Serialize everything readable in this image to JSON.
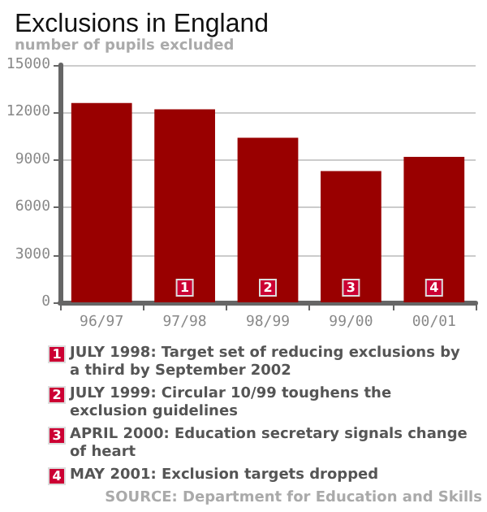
{
  "chart_data": {
    "type": "bar",
    "title": "Exclusions in England",
    "subtitle": "number of pupils excluded",
    "categories": [
      "96/97",
      "97/98",
      "98/99",
      "99/00",
      "00/01"
    ],
    "values": [
      12600,
      12200,
      10400,
      8300,
      9200
    ],
    "color": "#990000",
    "ylim": [
      0,
      15000
    ],
    "yticks": [
      0,
      3000,
      6000,
      9000,
      12000,
      15000
    ],
    "grid": "y",
    "annotations": [
      {
        "text": "1",
        "x": "97/98",
        "y": 0
      },
      {
        "text": "2",
        "x": "98/99",
        "y": 0
      },
      {
        "text": "3",
        "x": "99/00",
        "y": 0
      },
      {
        "text": "4",
        "x": "00/01",
        "y": 0
      },
      "JULY 1998: Target set of reducing exclusions by a third by September 2002",
      "JULY 1999: Circular 10/99 toughens the exclusion guidelines",
      "APRIL 2000: Education secretary signals change of heart",
      "MAY 2001: Exclusion targets dropped",
      "SOURCE: Department for Education and Skills"
    ]
  }
}
